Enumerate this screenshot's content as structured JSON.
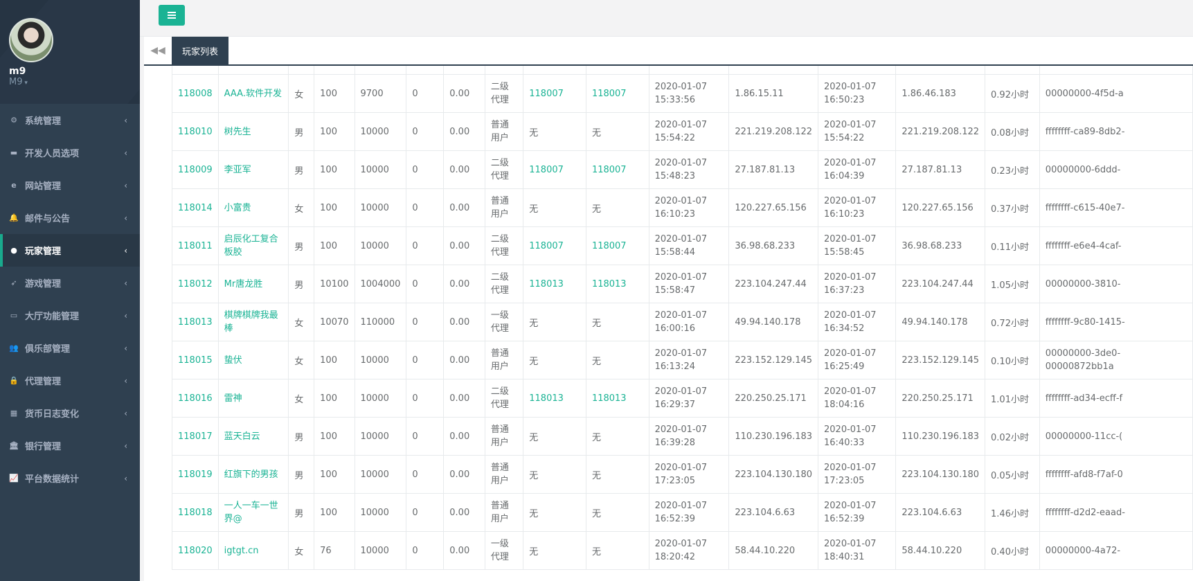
{
  "user": {
    "name": "m9",
    "role": "M9"
  },
  "sidebar": {
    "items": [
      {
        "label": "系统管理",
        "icon": "gears-icon"
      },
      {
        "label": "开发人员选项",
        "icon": "gamepad-icon"
      },
      {
        "label": "网站管理",
        "icon": "ie-icon"
      },
      {
        "label": "邮件与公告",
        "icon": "bell-icon"
      },
      {
        "label": "玩家管理",
        "icon": "user-icon",
        "active": true
      },
      {
        "label": "游戏管理",
        "icon": "rocket-icon"
      },
      {
        "label": "大厅功能管理",
        "icon": "desktop-icon"
      },
      {
        "label": "俱乐部管理",
        "icon": "users-icon"
      },
      {
        "label": "代理管理",
        "icon": "lock-icon"
      },
      {
        "label": "货币日志变化",
        "icon": "calendar-icon"
      },
      {
        "label": "银行管理",
        "icon": "bank-icon"
      },
      {
        "label": "平台数据统计",
        "icon": "line-chart-icon"
      }
    ]
  },
  "tabs": {
    "active_label": "玩家列表"
  },
  "colors": {
    "accent": "#1ab394",
    "sidebar": "#2f4050"
  },
  "rows": [
    [
      "118008",
      "AAA.软件开发",
      "女",
      "100",
      "9700",
      "0",
      "0.00",
      "二级代理",
      "118007",
      "118007",
      "2020-01-07 15:33:56",
      "1.86.15.11",
      "2020-01-07 16:50:23",
      "1.86.46.183",
      "0.92小时",
      "00000000-4f5d-a"
    ],
    [
      "118010",
      "树先生",
      "男",
      "100",
      "10000",
      "0",
      "0.00",
      "普通用户",
      "无",
      "无",
      "2020-01-07 15:54:22",
      "221.219.208.122",
      "2020-01-07 15:54:22",
      "221.219.208.122",
      "0.08小时",
      "ffffffff-ca89-8db2-"
    ],
    [
      "118009",
      "李亚军",
      "男",
      "100",
      "10000",
      "0",
      "0.00",
      "二级代理",
      "118007",
      "118007",
      "2020-01-07 15:48:23",
      "27.187.81.13",
      "2020-01-07 16:04:39",
      "27.187.81.13",
      "0.23小时",
      "00000000-6ddd-"
    ],
    [
      "118014",
      "小富贵",
      "女",
      "100",
      "10000",
      "0",
      "0.00",
      "普通用户",
      "无",
      "无",
      "2020-01-07 16:10:23",
      "120.227.65.156",
      "2020-01-07 16:10:23",
      "120.227.65.156",
      "0.37小时",
      "ffffffff-c615-40e7-"
    ],
    [
      "118011",
      "启辰化工复合板胶",
      "男",
      "100",
      "10000",
      "0",
      "0.00",
      "二级代理",
      "118007",
      "118007",
      "2020-01-07 15:58:44",
      "36.98.68.233",
      "2020-01-07 15:58:45",
      "36.98.68.233",
      "0.11小时",
      "ffffffff-e6e4-4caf-"
    ],
    [
      "118012",
      "Mr唐龙胜",
      "男",
      "10100",
      "1004000",
      "0",
      "0.00",
      "二级代理",
      "118013",
      "118013",
      "2020-01-07 15:58:47",
      "223.104.247.44",
      "2020-01-07 16:37:23",
      "223.104.247.44",
      "1.05小时",
      "00000000-3810-"
    ],
    [
      "118013",
      "棋牌棋牌我最棒",
      "女",
      "10070",
      "110000",
      "0",
      "0.00",
      "一级代理",
      "无",
      "无",
      "2020-01-07 16:00:16",
      "49.94.140.178",
      "2020-01-07 16:34:52",
      "49.94.140.178",
      "0.72小时",
      "ffffffff-9c80-1415-"
    ],
    [
      "118015",
      "蛰伏",
      "女",
      "100",
      "10000",
      "0",
      "0.00",
      "普通用户",
      "无",
      "无",
      "2020-01-07 16:13:24",
      "223.152.129.145",
      "2020-01-07 16:25:49",
      "223.152.129.145",
      "0.10小时",
      "00000000-3de0-00000872bb1a"
    ],
    [
      "118016",
      "雷神",
      "女",
      "100",
      "10000",
      "0",
      "0.00",
      "二级代理",
      "118013",
      "118013",
      "2020-01-07 16:29:37",
      "220.250.25.171",
      "2020-01-07 18:04:16",
      "220.250.25.171",
      "1.01小时",
      "ffffffff-ad34-ecff-f"
    ],
    [
      "118017",
      "蓝天白云",
      "男",
      "100",
      "10000",
      "0",
      "0.00",
      "普通用户",
      "无",
      "无",
      "2020-01-07 16:39:28",
      "110.230.196.183",
      "2020-01-07 16:40:33",
      "110.230.196.183",
      "0.02小时",
      "00000000-11cc-("
    ],
    [
      "118019",
      "红旗下的男孩",
      "男",
      "100",
      "10000",
      "0",
      "0.00",
      "普通用户",
      "无",
      "无",
      "2020-01-07 17:23:05",
      "223.104.130.180",
      "2020-01-07 17:23:05",
      "223.104.130.180",
      "0.05小时",
      "ffffffff-afd8-f7af-0"
    ],
    [
      "118018",
      "一人一车一世界@",
      "男",
      "100",
      "10000",
      "0",
      "0.00",
      "普通用户",
      "无",
      "无",
      "2020-01-07 16:52:39",
      "223.104.6.63",
      "2020-01-07 16:52:39",
      "223.104.6.63",
      "1.46小时",
      "ffffffff-d2d2-eaad-"
    ],
    [
      "118020",
      "igtgt.cn",
      "女",
      "76",
      "10000",
      "0",
      "0.00",
      "一级代理",
      "无",
      "无",
      "2020-01-07 18:20:42",
      "58.44.10.220",
      "2020-01-07 18:40:31",
      "58.44.10.220",
      "0.40小时",
      "00000000-4a72-"
    ]
  ]
}
